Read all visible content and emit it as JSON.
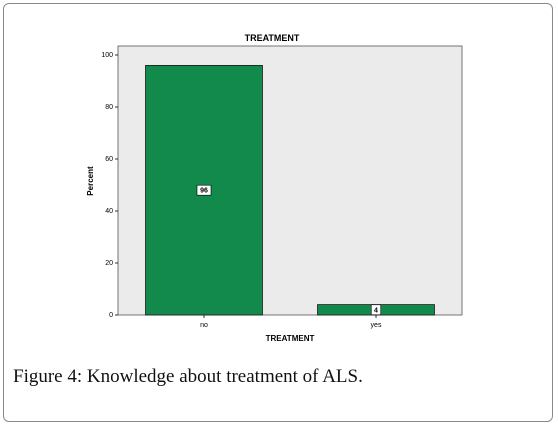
{
  "caption": {
    "label": "Figure 4:",
    "text": " Knowledge about treatment of ALS."
  },
  "chart_data": {
    "type": "bar",
    "title": "TREATMENT",
    "xlabel": "TREATMENT",
    "ylabel": "Percent",
    "categories": [
      "no",
      "yes"
    ],
    "values": [
      96,
      4
    ],
    "data_labels": [
      "96",
      "4"
    ],
    "ylim": [
      0,
      100
    ],
    "yticks": [
      0,
      20,
      40,
      60,
      80,
      100
    ],
    "grid": false,
    "colors": {
      "bar_fill": "#128a4b",
      "bar_stroke": "#1a1a1a",
      "plot_background": "#ebebeb"
    }
  }
}
